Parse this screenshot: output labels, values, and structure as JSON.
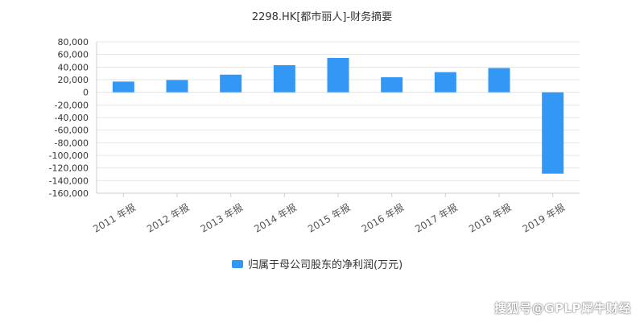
{
  "chart_data": {
    "type": "bar",
    "title": "2298.HK[都市丽人]-财务摘要",
    "categories": [
      "2011 年报",
      "2012 年报",
      "2013 年报",
      "2014 年报",
      "2015 年报",
      "2016 年报",
      "2017 年报",
      "2018 年报",
      "2019 年报"
    ],
    "series": [
      {
        "name": "归属于母公司股东的净利润(万元)",
        "values": [
          17000,
          19500,
          28000,
          43000,
          54500,
          24000,
          32000,
          38500,
          -129000
        ],
        "color": "#3398f5"
      }
    ],
    "ylim": [
      -160000,
      80000
    ],
    "yticks": [
      80000,
      60000,
      40000,
      20000,
      0,
      -20000,
      -40000,
      -60000,
      -80000,
      -100000,
      -120000,
      -140000,
      -160000
    ],
    "ytick_labels": [
      "80,000",
      "60,000",
      "40,000",
      "20,000",
      "0",
      "-20,000",
      "-40,000",
      "-60,000",
      "-80,000",
      "-100,000",
      "-120,000",
      "-140,000",
      "-160,000"
    ],
    "grid": true,
    "legend_position": "bottom-center",
    "gridline_color": "#e6e6e6"
  },
  "watermark": "搜狐号@GPLP犀牛财经"
}
